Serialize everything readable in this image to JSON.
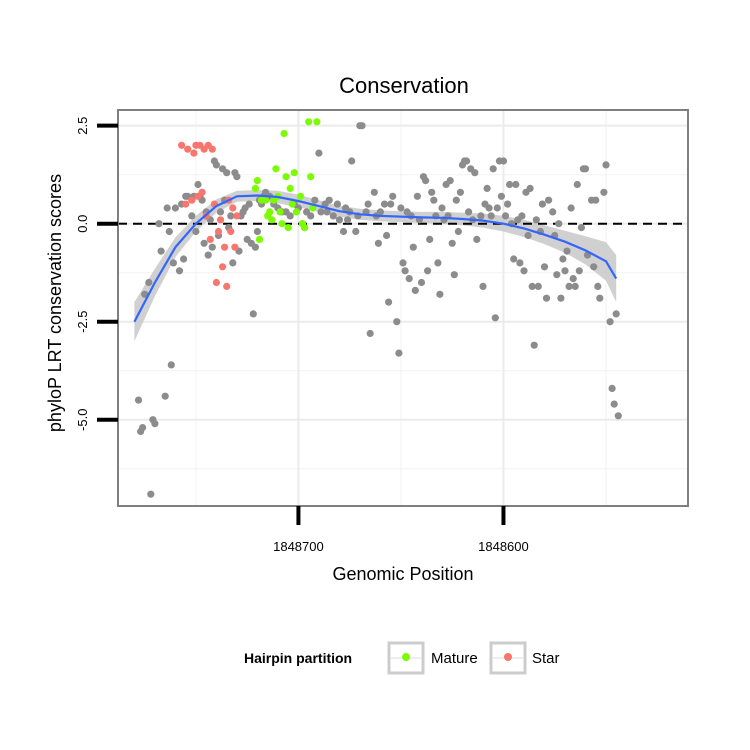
{
  "chart_data": {
    "type": "scatter",
    "title": "Conservation",
    "xlabel": "Genomic Position",
    "ylabel": "phyloP LRT conservation scores",
    "x_reversed": true,
    "xlim": [
      1848788,
      1848510
    ],
    "ylim": [
      -7.2,
      2.9
    ],
    "x_ticks": [
      {
        "value": 1848700,
        "label": "1848700"
      },
      {
        "value": 1848600,
        "label": "1848600"
      }
    ],
    "y_ticks": [
      {
        "value": 2.5,
        "label": "2.5"
      },
      {
        "value": 0,
        "label": "0.0"
      },
      {
        "value": -2.5,
        "label": "-2.5"
      },
      {
        "value": -5,
        "label": "-5.0"
      }
    ],
    "reference_line_y": 0,
    "grid": true,
    "legend": {
      "title": "Hairpin partition",
      "position": "bottom",
      "entries": [
        {
          "label": "Mature",
          "color": "#7CFC00"
        },
        {
          "label": "Star",
          "color": "#F8766D"
        }
      ]
    },
    "colors": {
      "other": "#8c8c8c",
      "mature": "#7CFC00",
      "star": "#F8766D",
      "smooth_line": "#3366FF",
      "ribbon": "#c8c8c8"
    },
    "series": [
      {
        "group": "other",
        "points": [
          [
            1848778,
            -4.5
          ],
          [
            1848777,
            -5.3
          ],
          [
            1848776,
            -5.2
          ],
          [
            1848775,
            -1.8
          ],
          [
            1848773,
            -1.5
          ],
          [
            1848772,
            -6.9
          ],
          [
            1848771,
            -5.0
          ],
          [
            1848770,
            -5.1
          ],
          [
            1848768,
            0.0
          ],
          [
            1848767,
            -0.7
          ],
          [
            1848765,
            -4.4
          ],
          [
            1848764,
            0.4
          ],
          [
            1848763,
            -0.2
          ],
          [
            1848762,
            -3.6
          ],
          [
            1848761,
            -1.0
          ],
          [
            1848760,
            0.4
          ],
          [
            1848758,
            -1.2
          ],
          [
            1848757,
            0.5
          ],
          [
            1848756,
            -0.9
          ],
          [
            1848755,
            0.7
          ],
          [
            1848754,
            0.7
          ],
          [
            1848752,
            0.2
          ],
          [
            1848751,
            0.7
          ],
          [
            1848750,
            -0.2
          ],
          [
            1848749,
            1.0
          ],
          [
            1848748,
            0.7
          ],
          [
            1848747,
            0.6
          ],
          [
            1848746,
            -0.5
          ],
          [
            1848745,
            0.3
          ],
          [
            1848744,
            -0.8
          ],
          [
            1848743,
            0.1
          ],
          [
            1848742,
            -0.6
          ],
          [
            1848741,
            1.6
          ],
          [
            1848740,
            1.5
          ],
          [
            1848739,
            -0.3
          ],
          [
            1848738,
            0.3
          ],
          [
            1848737,
            1.4
          ],
          [
            1848736,
            0.6
          ],
          [
            1848735,
            1.3
          ],
          [
            1848734,
            -0.1
          ],
          [
            1848733,
            0.2
          ],
          [
            1848732,
            -1.0
          ],
          [
            1848731,
            1.3
          ],
          [
            1848730,
            1.2
          ],
          [
            1848729,
            -0.7
          ],
          [
            1848728,
            0.2
          ],
          [
            1848727,
            0.3
          ],
          [
            1848726,
            0.4
          ],
          [
            1848725,
            -0.4
          ],
          [
            1848724,
            0.5
          ],
          [
            1848723,
            -0.5
          ],
          [
            1848722,
            -2.3
          ],
          [
            1848721,
            -0.6
          ],
          [
            1848720,
            -0.2
          ],
          [
            1848719,
            0.6
          ],
          [
            1848718,
            0.5
          ],
          [
            1848717,
            0.7
          ],
          [
            1848716,
            0.8
          ],
          [
            1848714,
            0.7
          ],
          [
            1848712,
            0.5
          ],
          [
            1848710,
            0.4
          ],
          [
            1848708,
            0.3
          ],
          [
            1848706,
            0.3
          ],
          [
            1848704,
            0.2
          ],
          [
            1848702,
            0.5
          ],
          [
            1848700,
            0.4
          ],
          [
            1848698,
            0.0
          ],
          [
            1848697,
            -0.1
          ],
          [
            1848696,
            0.3
          ],
          [
            1848694,
            0.2
          ],
          [
            1848692,
            0.6
          ],
          [
            1848690,
            1.8
          ],
          [
            1848689,
            0.3
          ],
          [
            1848687,
            0.5
          ],
          [
            1848686,
            0.3
          ],
          [
            1848685,
            0.6
          ],
          [
            1848683,
            0.2
          ],
          [
            1848681,
            0.5
          ],
          [
            1848680,
            0.1
          ],
          [
            1848678,
            -0.2
          ],
          [
            1848677,
            0.4
          ],
          [
            1848676,
            0.1
          ],
          [
            1848675,
            0.3
          ],
          [
            1848674,
            1.6
          ],
          [
            1848672,
            -0.2
          ],
          [
            1848671,
            0.2
          ],
          [
            1848670,
            2.5
          ],
          [
            1848669,
            2.5
          ],
          [
            1848667,
            0.3
          ],
          [
            1848666,
            0.5
          ],
          [
            1848665,
            -2.8
          ],
          [
            1848663,
            0.8
          ],
          [
            1848662,
            0.2
          ],
          [
            1848661,
            -0.5
          ],
          [
            1848660,
            0.3
          ],
          [
            1848658,
            0.5
          ],
          [
            1848657,
            -0.3
          ],
          [
            1848656,
            -2.0
          ],
          [
            1848655,
            0.5
          ],
          [
            1848654,
            0.7
          ],
          [
            1848652,
            -2.5
          ],
          [
            1848651,
            -3.3
          ],
          [
            1848650,
            0.4
          ],
          [
            1848649,
            -1.0
          ],
          [
            1848648,
            -1.2
          ],
          [
            1848647,
            0.3
          ],
          [
            1848646,
            -1.4
          ],
          [
            1848645,
            0.2
          ],
          [
            1848644,
            -0.6
          ],
          [
            1848643,
            -1.7
          ],
          [
            1848642,
            0.7
          ],
          [
            1848641,
            0.1
          ],
          [
            1848640,
            -1.5
          ],
          [
            1848639,
            1.2
          ],
          [
            1848638,
            1.1
          ],
          [
            1848637,
            -1.2
          ],
          [
            1848636,
            -0.4
          ],
          [
            1848635,
            0.8
          ],
          [
            1848634,
            0.6
          ],
          [
            1848633,
            0.2
          ],
          [
            1848632,
            -1.0
          ],
          [
            1848631,
            -1.8
          ],
          [
            1848630,
            0.4
          ],
          [
            1848629,
            0.1
          ],
          [
            1848628,
            1.0
          ],
          [
            1848627,
            0.2
          ],
          [
            1848626,
            1.1
          ],
          [
            1848625,
            -0.5
          ],
          [
            1848624,
            -1.3
          ],
          [
            1848623,
            0.6
          ],
          [
            1848622,
            -0.2
          ],
          [
            1848621,
            0.8
          ],
          [
            1848620,
            1.5
          ],
          [
            1848619,
            1.6
          ],
          [
            1848618,
            1.6
          ],
          [
            1848617,
            0.3
          ],
          [
            1848616,
            1.4
          ],
          [
            1848615,
            0.1
          ],
          [
            1848614,
            1.3
          ],
          [
            1848613,
            -0.4
          ],
          [
            1848611,
            0.2
          ],
          [
            1848610,
            -1.6
          ],
          [
            1848609,
            0.5
          ],
          [
            1848608,
            0.9
          ],
          [
            1848607,
            0.4
          ],
          [
            1848606,
            0.2
          ],
          [
            1848605,
            1.4
          ],
          [
            1848604,
            -2.4
          ],
          [
            1848603,
            0.4
          ],
          [
            1848602,
            1.6
          ],
          [
            1848601,
            0.7
          ],
          [
            1848600,
            1.6
          ],
          [
            1848599,
            0.2
          ],
          [
            1848598,
            0.5
          ],
          [
            1848597,
            1.0
          ],
          [
            1848596,
            0.0
          ],
          [
            1848595,
            -0.9
          ],
          [
            1848594,
            1.0
          ],
          [
            1848593,
            0.1
          ],
          [
            1848592,
            -1.0
          ],
          [
            1848591,
            0.2
          ],
          [
            1848590,
            -1.2
          ],
          [
            1848589,
            0.8
          ],
          [
            1848588,
            -0.3
          ],
          [
            1848587,
            0.9
          ],
          [
            1848586,
            -1.6
          ],
          [
            1848585,
            -3.1
          ],
          [
            1848584,
            0.1
          ],
          [
            1848583,
            -1.6
          ],
          [
            1848582,
            -0.2
          ],
          [
            1848581,
            0.5
          ],
          [
            1848580,
            -1.1
          ],
          [
            1848579,
            -1.9
          ],
          [
            1848578,
            0.6
          ],
          [
            1848576,
            0.3
          ],
          [
            1848575,
            -0.3
          ],
          [
            1848574,
            -1.3
          ],
          [
            1848573,
            0.0
          ],
          [
            1848572,
            -1.9
          ],
          [
            1848571,
            -0.9
          ],
          [
            1848570,
            -1.2
          ],
          [
            1848569,
            -0.7
          ],
          [
            1848568,
            -1.6
          ],
          [
            1848567,
            0.4
          ],
          [
            1848566,
            -1.4
          ],
          [
            1848565,
            -1.6
          ],
          [
            1848564,
            1.0
          ],
          [
            1848563,
            -1.2
          ],
          [
            1848562,
            -0.1
          ],
          [
            1848561,
            1.4
          ],
          [
            1848560,
            1.4
          ],
          [
            1848559,
            -0.8
          ],
          [
            1848557,
            0.6
          ],
          [
            1848556,
            -1.1
          ],
          [
            1848555,
            0.6
          ],
          [
            1848554,
            -1.6
          ],
          [
            1848553,
            -1.9
          ],
          [
            1848551,
            0.8
          ],
          [
            1848550,
            1.5
          ],
          [
            1848548,
            -2.5
          ],
          [
            1848547,
            -4.2
          ],
          [
            1848546,
            -4.6
          ],
          [
            1848545,
            -2.3
          ],
          [
            1848544,
            -4.9
          ]
        ]
      },
      {
        "group": "mature",
        "points": [
          [
            1848721,
            0.9
          ],
          [
            1848720,
            1.1
          ],
          [
            1848719,
            -0.4
          ],
          [
            1848718,
            0.6
          ],
          [
            1848716,
            0.6
          ],
          [
            1848715,
            0.2
          ],
          [
            1848714,
            0.3
          ],
          [
            1848713,
            0.1
          ],
          [
            1848712,
            0.6
          ],
          [
            1848711,
            1.4
          ],
          [
            1848710,
            0.7
          ],
          [
            1848709,
            0.3
          ],
          [
            1848708,
            0.0
          ],
          [
            1848707,
            2.3
          ],
          [
            1848706,
            1.2
          ],
          [
            1848705,
            -0.1
          ],
          [
            1848704,
            0.9
          ],
          [
            1848703,
            0.5
          ],
          [
            1848702,
            1.3
          ],
          [
            1848701,
            0.3
          ],
          [
            1848699,
            0.7
          ],
          [
            1848698,
            0.0
          ],
          [
            1848697,
            -0.1
          ],
          [
            1848695,
            2.6
          ],
          [
            1848694,
            1.2
          ],
          [
            1848693,
            0.4
          ],
          [
            1848691,
            2.6
          ]
        ]
      },
      {
        "group": "star",
        "points": [
          [
            1848757,
            2.0
          ],
          [
            1848755,
            0.5
          ],
          [
            1848754,
            1.9
          ],
          [
            1848752,
            0.6
          ],
          [
            1848751,
            1.8
          ],
          [
            1848750,
            2.0
          ],
          [
            1848749,
            0.7
          ],
          [
            1848748,
            2.0
          ],
          [
            1848747,
            0.8
          ],
          [
            1848746,
            1.9
          ],
          [
            1848745,
            0.2
          ],
          [
            1848744,
            2.0
          ],
          [
            1848743,
            -0.4
          ],
          [
            1848742,
            1.9
          ],
          [
            1848741,
            0.5
          ],
          [
            1848740,
            -1.5
          ],
          [
            1848739,
            -0.2
          ],
          [
            1848738,
            0.1
          ],
          [
            1848737,
            -1.1
          ],
          [
            1848736,
            -0.6
          ],
          [
            1848735,
            -1.6
          ],
          [
            1848734,
            0.6
          ],
          [
            1848733,
            -0.2
          ],
          [
            1848732,
            0.4
          ],
          [
            1848731,
            -0.6
          ],
          [
            1848730,
            0.2
          ]
        ]
      }
    ],
    "smooth": {
      "x": [
        1848780,
        1848770,
        1848760,
        1848750,
        1848740,
        1848730,
        1848720,
        1848710,
        1848700,
        1848690,
        1848680,
        1848670,
        1848660,
        1848650,
        1848640,
        1848630,
        1848620,
        1848610,
        1848600,
        1848590,
        1848580,
        1848570,
        1848560,
        1848550,
        1848545
      ],
      "y": [
        -2.5,
        -1.5,
        -0.6,
        0.0,
        0.45,
        0.7,
        0.72,
        0.68,
        0.58,
        0.45,
        0.32,
        0.24,
        0.2,
        0.18,
        0.16,
        0.15,
        0.12,
        0.08,
        0.0,
        -0.12,
        -0.28,
        -0.46,
        -0.68,
        -0.96,
        -1.4
      ],
      "lower": [
        -3.0,
        -1.85,
        -0.85,
        -0.2,
        0.28,
        0.56,
        0.58,
        0.52,
        0.42,
        0.3,
        0.18,
        0.1,
        0.06,
        0.04,
        0.02,
        0.0,
        -0.04,
        -0.1,
        -0.2,
        -0.34,
        -0.52,
        -0.74,
        -1.04,
        -1.45,
        -2.0
      ],
      "upper": [
        -2.0,
        -1.15,
        -0.35,
        0.2,
        0.62,
        0.84,
        0.86,
        0.84,
        0.74,
        0.6,
        0.46,
        0.38,
        0.34,
        0.32,
        0.3,
        0.3,
        0.28,
        0.26,
        0.2,
        0.1,
        -0.04,
        -0.18,
        -0.32,
        -0.47,
        -0.8
      ]
    }
  }
}
